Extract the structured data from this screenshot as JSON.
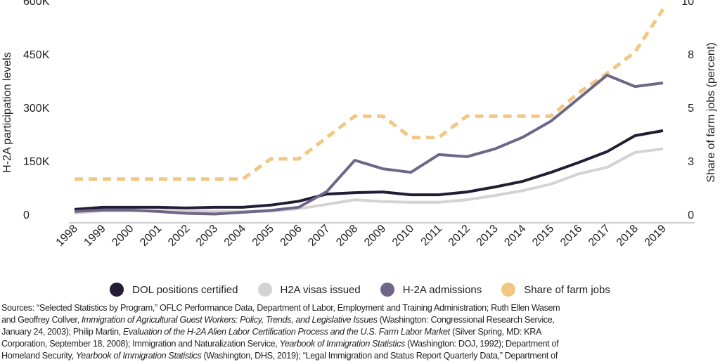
{
  "chart_data": {
    "type": "line",
    "x": [
      1998,
      1999,
      2000,
      2001,
      2002,
      2003,
      2004,
      2005,
      2006,
      2007,
      2008,
      2009,
      2010,
      2011,
      2012,
      2013,
      2014,
      2015,
      2016,
      2017,
      2018,
      2019
    ],
    "ylabel": "H-2A participation levels",
    "ylabel_right": "Share of farm jobs (percent)",
    "ylim": [
      0,
      600000
    ],
    "ylim_right": [
      0,
      10
    ],
    "yticks": [
      0,
      150000,
      300000,
      450000,
      600000
    ],
    "ytick_labels": [
      "0",
      "150K",
      "300K",
      "450K",
      "600K"
    ],
    "yticks_right": [
      0,
      2.5,
      5,
      7.5,
      10
    ],
    "ytick_labels_right": [
      "0",
      "3",
      "5",
      "8",
      "10"
    ],
    "grid": false,
    "legend_position": "bottom",
    "series": [
      {
        "name": "DOL positions certified",
        "axis": "left",
        "color": "#231c35",
        "dashed": false,
        "values": [
          14000,
          20000,
          20000,
          20000,
          18000,
          20000,
          20000,
          26000,
          37000,
          57000,
          61000,
          63000,
          55000,
          55000,
          63000,
          77000,
          93000,
          118000,
          146000,
          176000,
          221000,
          235000
        ]
      },
      {
        "name": "H2A visas issued",
        "axis": "left",
        "color": "#d3d3d3",
        "dashed": false,
        "values": [
          4000,
          10000,
          10000,
          10000,
          8000,
          8000,
          8000,
          9000,
          16000,
          28000,
          41000,
          36000,
          34000,
          34000,
          41000,
          53000,
          67000,
          85000,
          114000,
          132000,
          174000,
          184000
        ]
      },
      {
        "name": "H-2A admissions",
        "axis": "left",
        "color": "#6e6688",
        "dashed": false,
        "values": [
          8000,
          12000,
          12000,
          8000,
          3000,
          1000,
          6000,
          11000,
          20000,
          64000,
          152000,
          128000,
          118000,
          168000,
          162000,
          184000,
          217000,
          262000,
          326000,
          391000,
          359000,
          369000
        ]
      },
      {
        "name": "Share of farm jobs",
        "axis": "right",
        "color": "#f2c784",
        "dashed": true,
        "values": [
          1.65,
          1.65,
          1.65,
          1.65,
          1.65,
          1.65,
          1.65,
          2.6,
          2.6,
          3.6,
          4.6,
          4.6,
          3.6,
          3.6,
          4.6,
          4.6,
          4.6,
          4.6,
          5.7,
          6.6,
          7.6,
          9.6
        ]
      }
    ]
  },
  "sources": [
    [
      {
        "t": "Sources: “Selected Statistics by Program,” OFLC Performance Data, Department of Labor, Employment and Training Administration; Ruth Ellen Wasem"
      }
    ],
    [
      {
        "t": "and Geoffrey Collver, "
      },
      {
        "t": "Immigration of Agricultural Guest Workers: Policy, Trends, and Legislative Issues",
        "i": true
      },
      {
        "t": " (Washington: Congressional Research Service,"
      }
    ],
    [
      {
        "t": "January 24, 2003); Philip Martin, "
      },
      {
        "t": "Evaluation of the H-2A Alien Labor Certification Process and the U.S. Farm Labor Market",
        "i": true
      },
      {
        "t": " (Silver Spring, MD: KRA"
      }
    ],
    [
      {
        "t": "Corporation, September 18, 2008); Immigration and Naturalization Service, "
      },
      {
        "t": "Yearbook of Immigration Statistics",
        "i": true
      },
      {
        "t": " (Washington: DOJ, 1992); Department of"
      }
    ],
    [
      {
        "t": "Homeland Security, "
      },
      {
        "t": "Yearbook of Immigration Statistics",
        "i": true
      },
      {
        "t": " (Washington, DHS, 2019); “Legal Immigration and Status Report Quarterly Data,” Department of"
      }
    ]
  ]
}
